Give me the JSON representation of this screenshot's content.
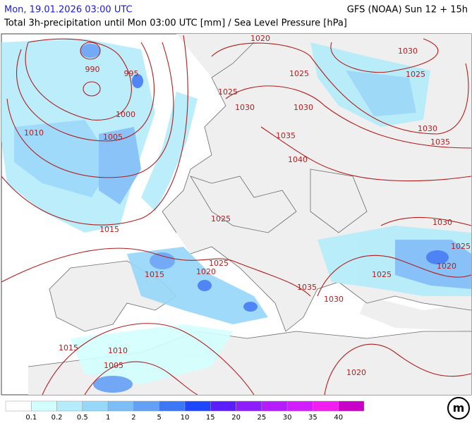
{
  "header": {
    "datetime": "Mon, 19.01.2026 03:00 UTC",
    "model": "GFS (NOAA) Sun 12 + 15h",
    "description": "Total 3h-precipitation until Mon 03:00 UTC [mm] / Sea Level Pressure [hPa]"
  },
  "isobar_labels": [
    1020,
    1030,
    990,
    995,
    1025,
    1025,
    1025,
    1030,
    1030,
    1000,
    1010,
    1005,
    1035,
    1030,
    1035,
    1040,
    1025,
    1015,
    1030,
    1025,
    1015,
    1020,
    1025,
    1025,
    1020,
    1035,
    1030,
    1015,
    1010,
    1005,
    1020
  ],
  "legend": {
    "colors": [
      "#ffffff",
      "#d2fffe",
      "#b4ecfb",
      "#96d7fa",
      "#7dbdf8",
      "#64a0f5",
      "#3c78f5",
      "#1e46ff",
      "#5a1eff",
      "#8c1eff",
      "#b41eff",
      "#d21eff",
      "#f01ef0",
      "#c800c8"
    ],
    "thresholds": [
      0.1,
      0.2,
      0.5,
      1,
      2,
      5,
      10,
      15,
      20,
      25,
      30,
      35,
      40
    ]
  }
}
